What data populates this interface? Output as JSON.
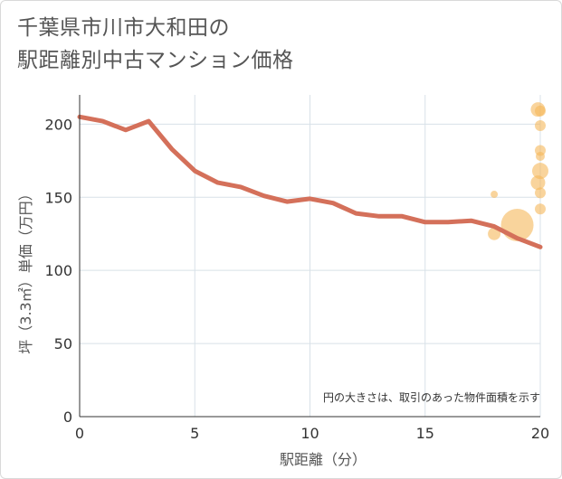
{
  "title_lines": [
    "千葉県市川市大和田の",
    "駅距離別中古マンション価格"
  ],
  "chart_data": {
    "type": "line",
    "xlabel": "駅距離（分）",
    "ylabel": "坪（3.3㎡）単価（万円）",
    "xlim": [
      0,
      20
    ],
    "ylim": [
      0,
      220
    ],
    "xticks": [
      0,
      5,
      10,
      15,
      20
    ],
    "yticks": [
      0,
      50,
      100,
      150,
      200
    ],
    "grid": true,
    "note": "円の大きさは、取引のあった物件面積を示す",
    "line_color": "#d4705a",
    "bubble_color": "#f5b75a",
    "line": {
      "x": [
        0,
        1,
        2,
        3,
        4,
        5,
        6,
        7,
        8,
        9,
        10,
        11,
        12,
        13,
        14,
        15,
        16,
        17,
        18,
        19,
        20
      ],
      "y": [
        205,
        202,
        196,
        202,
        183,
        168,
        160,
        157,
        151,
        147,
        149,
        146,
        139,
        137,
        137,
        133,
        133,
        134,
        130,
        122,
        116
      ]
    },
    "bubbles": [
      {
        "x": 18.0,
        "y": 152,
        "size": 4
      },
      {
        "x": 18.0,
        "y": 125,
        "size": 7
      },
      {
        "x": 19.0,
        "y": 131,
        "size": 18
      },
      {
        "x": 19.9,
        "y": 210,
        "size": 8
      },
      {
        "x": 20.0,
        "y": 209,
        "size": 6
      },
      {
        "x": 20.0,
        "y": 199,
        "size": 6
      },
      {
        "x": 20.0,
        "y": 182,
        "size": 6
      },
      {
        "x": 20.0,
        "y": 178,
        "size": 5
      },
      {
        "x": 20.0,
        "y": 168,
        "size": 9
      },
      {
        "x": 19.9,
        "y": 160,
        "size": 8
      },
      {
        "x": 20.0,
        "y": 153,
        "size": 6
      },
      {
        "x": 20.0,
        "y": 142,
        "size": 6
      }
    ]
  }
}
